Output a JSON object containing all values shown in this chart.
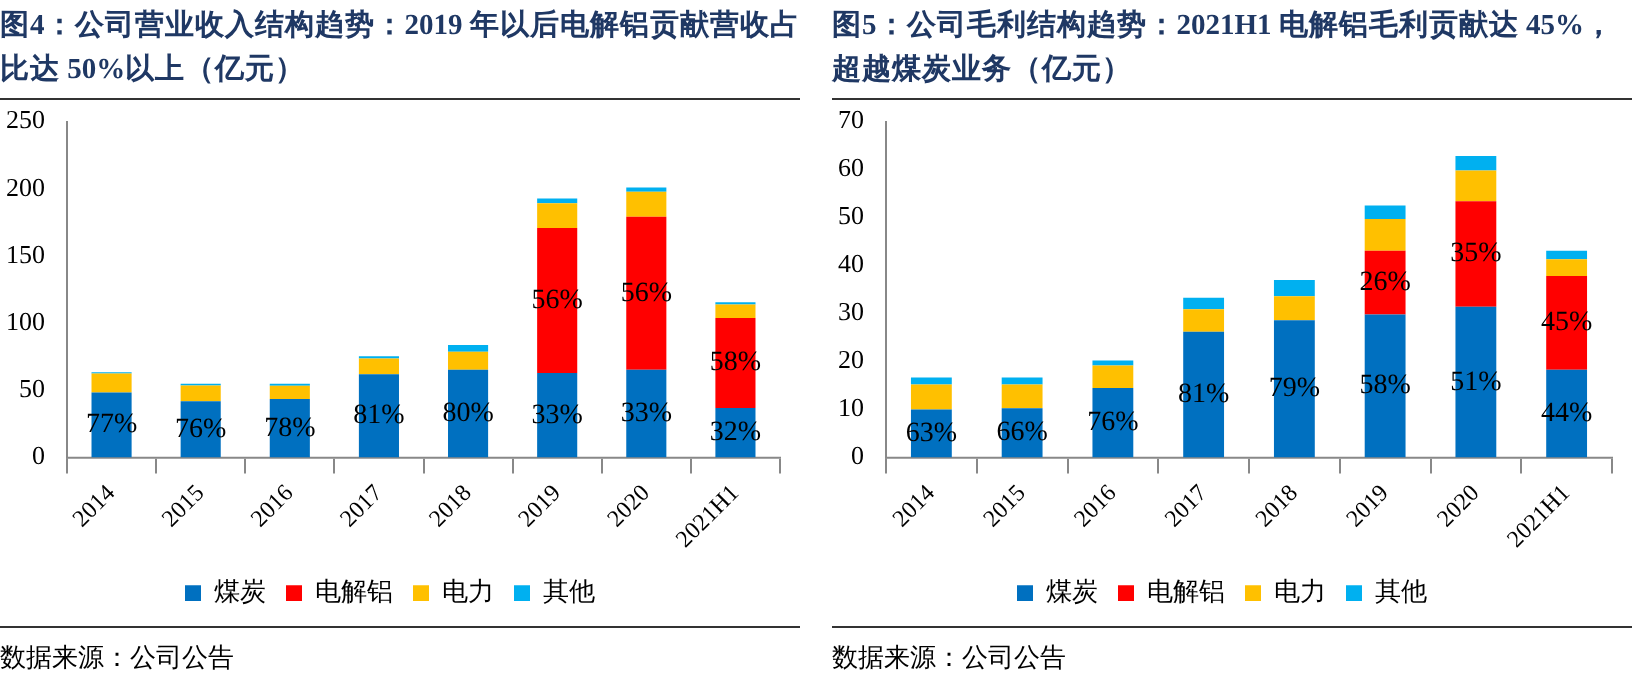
{
  "chart_data": [
    {
      "type": "bar",
      "stacked": true,
      "title": "图4：公司营业收入结构趋势：2019 年以后电解铝贡献营收占比达 50%以上（亿元）",
      "categories": [
        "2014",
        "2015",
        "2016",
        "2017",
        "2018",
        "2019",
        "2020",
        "2021H1"
      ],
      "ylim": [
        0,
        250
      ],
      "yticks": [
        0,
        50,
        100,
        150,
        200,
        250
      ],
      "legend": "bottom",
      "annotations": [
        "数据来源：公司公告",
        {
          "text": "77%",
          "x": "2014",
          "y": 48.5
        },
        {
          "text": "76%",
          "x": "2015",
          "y": 42
        },
        {
          "text": "78%",
          "x": "2016",
          "y": 43.5
        },
        {
          "text": "81%",
          "x": "2017",
          "y": 62
        },
        {
          "text": "80%",
          "x": "2018",
          "y": 65.3
        },
        {
          "text": "33%",
          "x": "2019",
          "y": 63
        },
        {
          "text": "33%",
          "x": "2020",
          "y": 65.3
        },
        {
          "text": "32%",
          "x": "2021H1",
          "y": 36.8
        },
        {
          "text": "56%",
          "x": "2019",
          "y": 170.8
        },
        {
          "text": "56%",
          "x": "2020",
          "y": 179.2
        },
        {
          "text": "58%",
          "x": "2021H1",
          "y": 103.8
        }
      ],
      "series": [
        {
          "name": "煤炭",
          "color": "#0070c0",
          "values": [
            48.5,
            42,
            43.5,
            62,
            65.3,
            63,
            65.3,
            36.8
          ]
        },
        {
          "name": "电解铝",
          "color": "#ff0000",
          "values": [
            0,
            0,
            0,
            0,
            0,
            107.8,
            113.9,
            67
          ]
        },
        {
          "name": "电力",
          "color": "#ffc000",
          "values": [
            14,
            11.6,
            10,
            11.7,
            13.4,
            18.4,
            18.5,
            10
          ]
        },
        {
          "name": "其他",
          "color": "#00b0f0",
          "values": [
            1,
            1.4,
            1.5,
            1.6,
            5,
            3.5,
            3.3,
            1.7
          ]
        }
      ]
    },
    {
      "type": "bar",
      "stacked": true,
      "title": "图5：公司毛利结构趋势：2021H1 电解铝毛利贡献达 45%，超越煤炭业务（亿元）",
      "categories": [
        "2014",
        "2015",
        "2016",
        "2017",
        "2018",
        "2019",
        "2020",
        "2021H1"
      ],
      "ylim": [
        0,
        70
      ],
      "yticks": [
        0,
        10,
        20,
        30,
        40,
        50,
        60,
        70
      ],
      "legend": "bottom",
      "annotations": [
        "数据来源：公司公告",
        {
          "text": "63%",
          "x": "2014",
          "y": 10
        },
        {
          "text": "66%",
          "x": "2015",
          "y": 10.3
        },
        {
          "text": "76%",
          "x": "2016",
          "y": 14.5
        },
        {
          "text": "81%",
          "x": "2017",
          "y": 26.2
        },
        {
          "text": "79%",
          "x": "2018",
          "y": 28.6
        },
        {
          "text": "58%",
          "x": "2019",
          "y": 29.8
        },
        {
          "text": "51%",
          "x": "2020",
          "y": 31.4
        },
        {
          "text": "44%",
          "x": "2021H1",
          "y": 18.3
        },
        {
          "text": "26%",
          "x": "2019",
          "y": 43.1
        },
        {
          "text": "35%",
          "x": "2020",
          "y": 53.4
        },
        {
          "text": "45%",
          "x": "2021H1",
          "y": 37.8
        }
      ],
      "series": [
        {
          "name": "煤炭",
          "color": "#0070c0",
          "values": [
            10,
            10.3,
            14.5,
            26.2,
            28.6,
            29.8,
            31.4,
            18.3
          ]
        },
        {
          "name": "电解铝",
          "color": "#ff0000",
          "values": [
            0,
            0,
            0,
            0,
            0,
            13.3,
            22,
            19.5
          ]
        },
        {
          "name": "电力",
          "color": "#ffc000",
          "values": [
            5.2,
            4.9,
            4.7,
            4.7,
            5,
            6.6,
            6.4,
            3.5
          ]
        },
        {
          "name": "其他",
          "color": "#00b0f0",
          "values": [
            1.5,
            1.5,
            1,
            2.4,
            3.4,
            2.8,
            3,
            1.8
          ]
        }
      ]
    }
  ]
}
